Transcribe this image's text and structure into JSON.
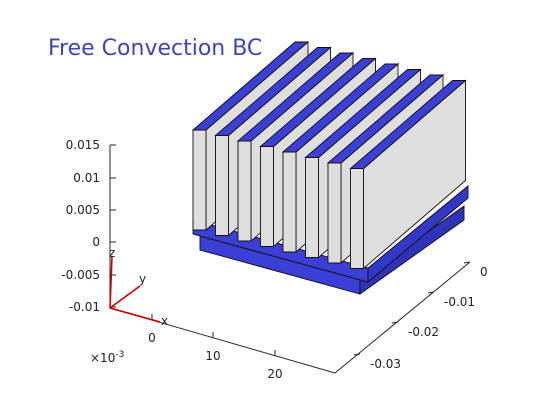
{
  "title": "Free Convection BC",
  "colors": {
    "accent": "#3f44bb",
    "fin_side": "#dedede",
    "fin_top": "#3b3fd6",
    "base_blue": "#3b3fd6",
    "triad_red": "#cc0000"
  },
  "axes": {
    "z_ticks": [
      "0.015",
      "0.01",
      "0.005",
      "0",
      "-0.005",
      "-0.01"
    ],
    "x_ticks": [
      "0",
      "10",
      "20"
    ],
    "x_multiplier": "×10",
    "x_multiplier_exp": "-3",
    "y_ticks": [
      "0",
      "-0.01",
      "-0.02",
      "-0.03"
    ]
  },
  "triad": {
    "z_label": "z",
    "y_label": "y",
    "x_label": "x"
  },
  "heatsink": {
    "fin_count": 8
  }
}
